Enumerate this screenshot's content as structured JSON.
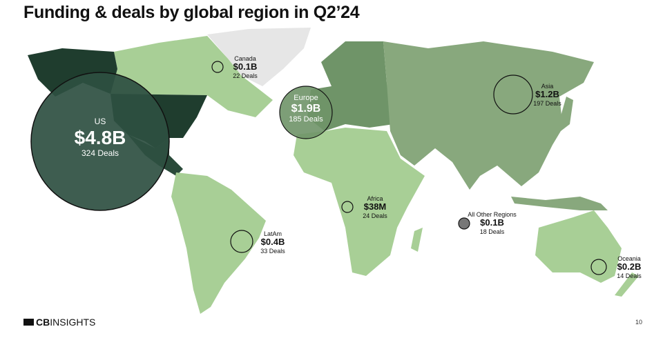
{
  "title": "Funding & deals by global region in Q2’24",
  "colors": {
    "us": "#1f3d2e",
    "europe": "#6f9468",
    "asia": "#88a87d",
    "light": "#a8cf96",
    "greenland": "#e6e6e6",
    "other_bubble": "#777777"
  },
  "regions": [
    {
      "id": "us",
      "name": "US",
      "funding": "$4.8B",
      "deals": "324 Deals"
    },
    {
      "id": "canada",
      "name": "Canada",
      "funding": "$0.1B",
      "deals": "22 Deals"
    },
    {
      "id": "europe",
      "name": "Europe",
      "funding": "$1.9B",
      "deals": "185 Deals"
    },
    {
      "id": "asia",
      "name": "Asia",
      "funding": "$1.2B",
      "deals": "197 Deals"
    },
    {
      "id": "africa",
      "name": "Africa",
      "funding": "$38M",
      "deals": "24 Deals"
    },
    {
      "id": "latam",
      "name": "LatAm",
      "funding": "$0.4B",
      "deals": "33 Deals"
    },
    {
      "id": "other",
      "name": "All Other Regions",
      "funding": "$0.1B",
      "deals": "18 Deals"
    },
    {
      "id": "oceania",
      "name": "Oceania",
      "funding": "$0.2B",
      "deals": "14 Deals"
    }
  ],
  "footer": {
    "logo": "CBINSIGHTS",
    "logo_bold": "CB",
    "logo_rest": "INSIGHTS",
    "page": "10"
  }
}
